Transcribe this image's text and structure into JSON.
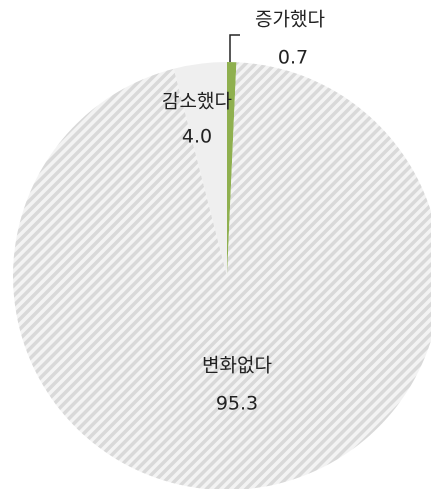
{
  "chart_data": {
    "type": "pie",
    "categories": [
      "증가했다",
      "변화없다",
      "감소했다"
    ],
    "values": [
      0.7,
      95.3,
      4.0
    ],
    "value_labels": [
      "0.7",
      "95.3",
      "4.0"
    ],
    "colors": [
      "#8fb04f",
      "#d9d9d9",
      "#efefef"
    ]
  }
}
